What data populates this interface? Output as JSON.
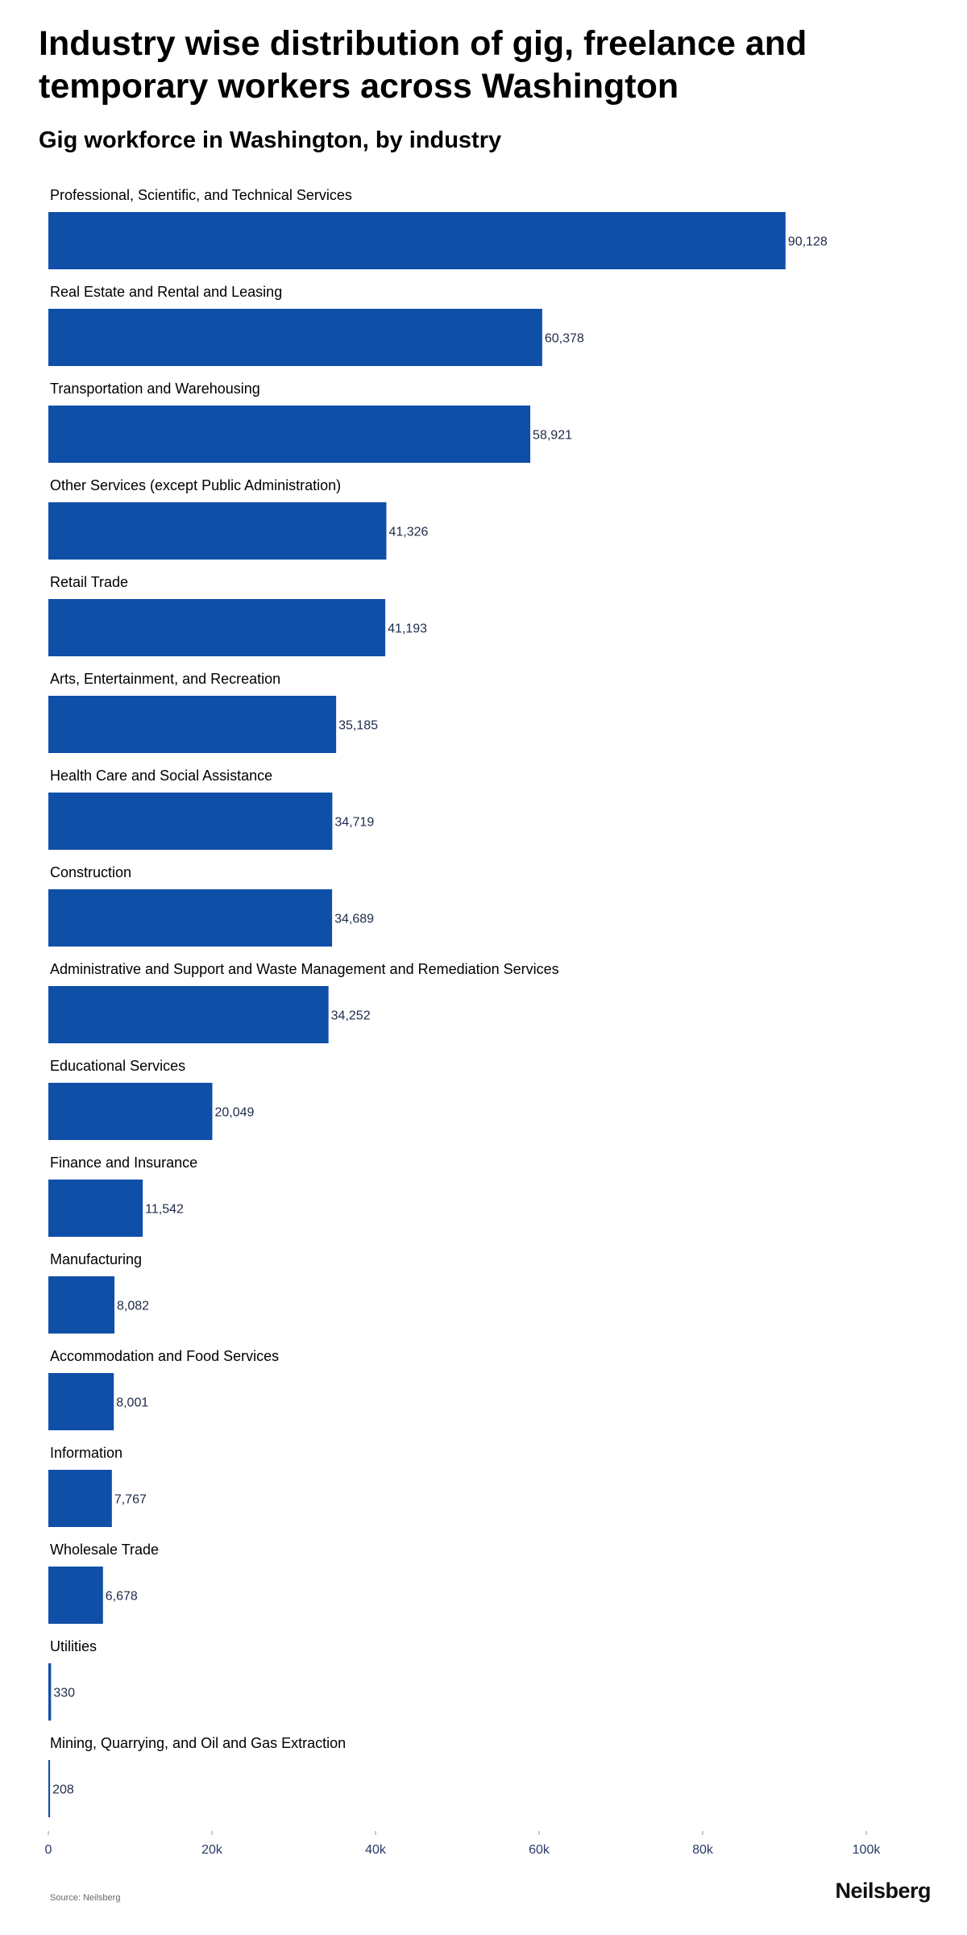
{
  "title": "Industry wise distribution of gig, freelance and temporary workers across Washington",
  "subtitle": "Gig workforce in Washington, by industry",
  "source": "Source: Neilsberg",
  "brand": "Neilsberg",
  "colors": {
    "bar": "#0f4fa8"
  },
  "chart_data": {
    "type": "bar",
    "orientation": "horizontal",
    "categories": [
      "Professional, Scientific, and Technical Services",
      "Real Estate and Rental and Leasing",
      "Transportation and Warehousing",
      "Other Services (except Public Administration)",
      "Retail Trade",
      "Arts, Entertainment, and Recreation",
      "Health Care and Social Assistance",
      "Construction",
      "Administrative and Support and Waste Management and Remediation Services",
      "Educational Services",
      "Finance and Insurance",
      "Manufacturing",
      "Accommodation and Food Services",
      "Information",
      "Wholesale Trade",
      "Utilities",
      "Mining, Quarrying, and Oil and Gas Extraction"
    ],
    "values": [
      90128,
      60378,
      58921,
      41326,
      41193,
      35185,
      34719,
      34689,
      34252,
      20049,
      11542,
      8082,
      8001,
      7767,
      6678,
      330,
      208
    ],
    "value_labels": [
      "90,128",
      "60,378",
      "58,921",
      "41,326",
      "41,193",
      "35,185",
      "34,719",
      "34,689",
      "34,252",
      "20,049",
      "11,542",
      "8,082",
      "8,001",
      "7,767",
      "6,678",
      "330",
      "208"
    ],
    "x_ticks": [
      0,
      20000,
      40000,
      60000,
      80000,
      100000
    ],
    "x_tick_labels": [
      "0",
      "20k",
      "40k",
      "60k",
      "80k",
      "100k"
    ],
    "xlim": [
      0,
      110000
    ],
    "grid": false,
    "legend": "none"
  }
}
